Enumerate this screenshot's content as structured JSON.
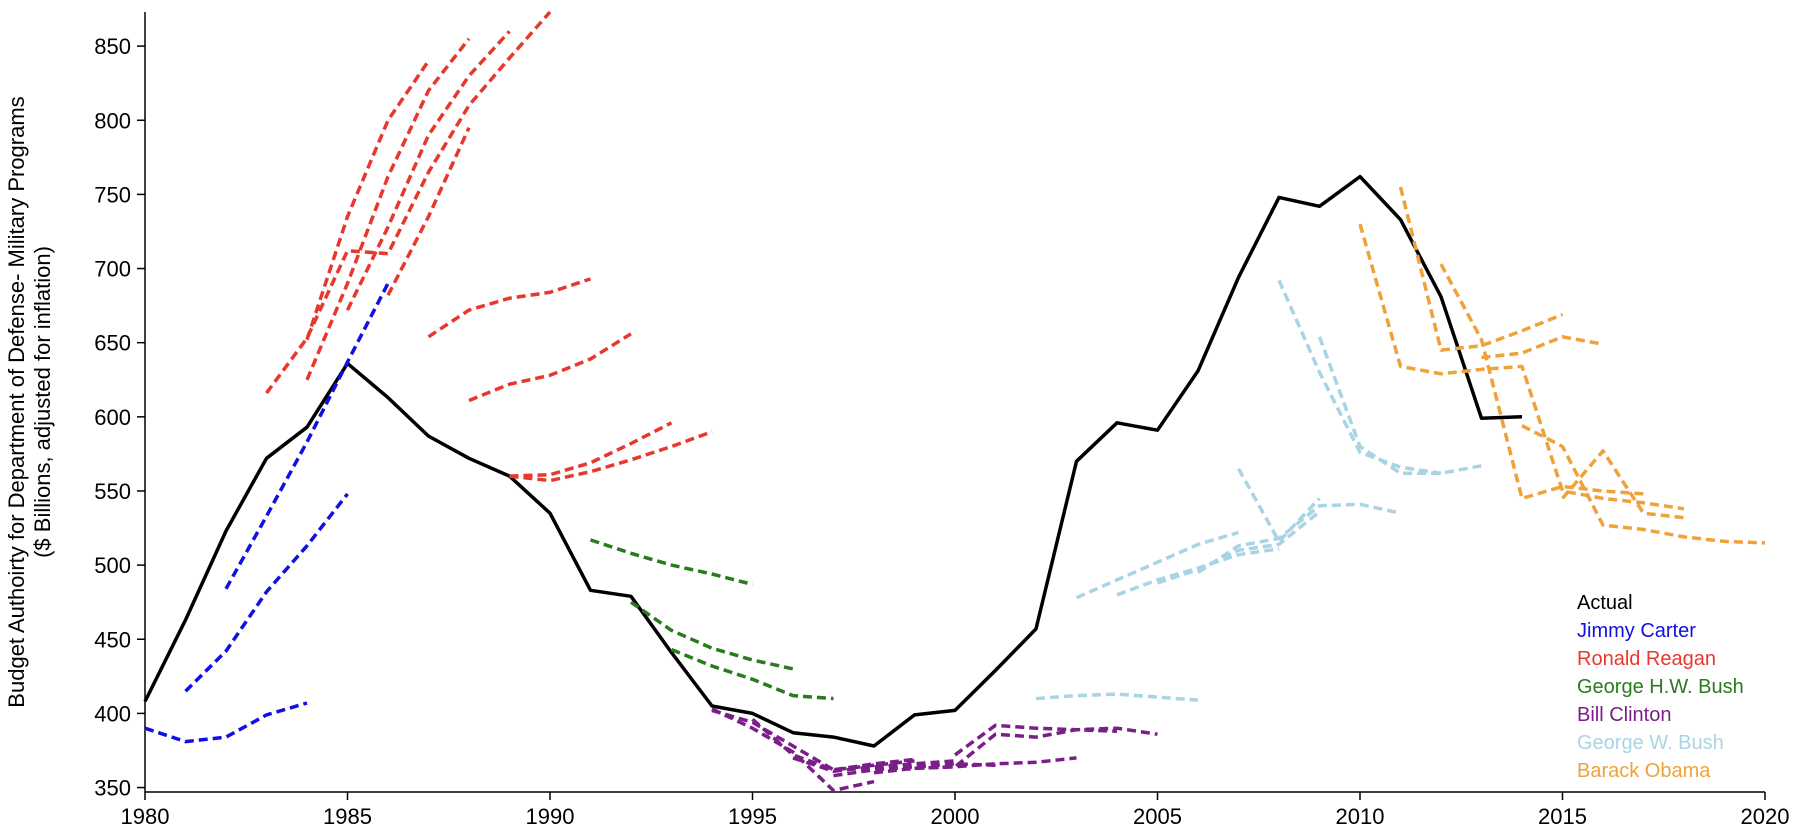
{
  "chart_data": {
    "type": "line",
    "title": "",
    "xlabel": "",
    "ylabel": "Budget Authoirty for Department of Defense- Military Programs",
    "ylabel2": "($ Billions, adjusted for inflation)",
    "xlim": [
      1980,
      2020
    ],
    "ylim": [
      347,
      873
    ],
    "xticks": [
      1980,
      1985,
      1990,
      1995,
      2000,
      2005,
      2010,
      2015,
      2020
    ],
    "yticks": [
      350,
      400,
      450,
      500,
      550,
      600,
      650,
      700,
      750,
      800,
      850
    ],
    "legend_position": "bottom-right",
    "grid": false,
    "series": [
      {
        "name": "Actual",
        "color": "#000000",
        "dashed": false,
        "segments": [
          [
            [
              1980,
              408
            ],
            [
              1981,
              463
            ],
            [
              1982,
              523
            ],
            [
              1983,
              572
            ],
            [
              1984,
              593
            ],
            [
              1985,
              636
            ],
            [
              1986,
              613
            ],
            [
              1987,
              587
            ],
            [
              1988,
              572
            ],
            [
              1989,
              560
            ],
            [
              1990,
              535
            ],
            [
              1991,
              483
            ],
            [
              1992,
              479
            ],
            [
              1993,
              441
            ],
            [
              1994,
              405
            ],
            [
              1995,
              400
            ],
            [
              1996,
              387
            ],
            [
              1997,
              384
            ],
            [
              1998,
              378
            ],
            [
              1999,
              399
            ],
            [
              2000,
              402
            ],
            [
              2001,
              429
            ],
            [
              2002,
              457
            ],
            [
              2003,
              570
            ],
            [
              2004,
              596
            ],
            [
              2005,
              591
            ],
            [
              2006,
              631
            ],
            [
              2007,
              694
            ],
            [
              2008,
              748
            ],
            [
              2009,
              742
            ],
            [
              2010,
              762
            ],
            [
              2011,
              733
            ],
            [
              2012,
              681
            ],
            [
              2013,
              599
            ],
            [
              2014,
              600
            ]
          ]
        ]
      },
      {
        "name": "Jimmy Carter",
        "color": "#1010e0",
        "dashed": true,
        "segments": [
          [
            [
              1980,
              390
            ],
            [
              1981,
              381
            ],
            [
              1982,
              384
            ],
            [
              1983,
              399
            ],
            [
              1984,
              407
            ]
          ],
          [
            [
              1981,
              415
            ],
            [
              1982,
              442
            ],
            [
              1983,
              482
            ],
            [
              1984,
              513
            ],
            [
              1985,
              548
            ]
          ],
          [
            [
              1982,
              484
            ],
            [
              1983,
              533
            ],
            [
              1984,
              583
            ],
            [
              1985,
              637
            ],
            [
              1986,
              690
            ]
          ]
        ]
      },
      {
        "name": "Ronald Reagan",
        "color": "#e8382e",
        "dashed": true,
        "segments": [
          [
            [
              1983,
              616
            ],
            [
              1984,
              653
            ],
            [
              1985,
              712
            ],
            [
              1986,
              710
            ],
            [
              1987,
              765
            ],
            [
              1988,
              810
            ],
            [
              1989,
              842
            ],
            [
              1990,
              873
            ]
          ],
          [
            [
              1984,
              625
            ],
            [
              1985,
              690
            ],
            [
              1986,
              762
            ],
            [
              1987,
              820
            ],
            [
              1988,
              855
            ]
          ],
          [
            [
              1984,
              652
            ],
            [
              1985,
              735
            ],
            [
              1986,
              800
            ],
            [
              1987,
              840
            ]
          ],
          [
            [
              1985,
              672
            ],
            [
              1986,
              728
            ],
            [
              1987,
              790
            ],
            [
              1988,
              830
            ],
            [
              1989,
              860
            ]
          ],
          [
            [
              1986,
              682
            ],
            [
              1987,
              735
            ],
            [
              1988,
              795
            ]
          ],
          [
            [
              1987,
              654
            ],
            [
              1988,
              672
            ],
            [
              1989,
              680
            ],
            [
              1990,
              684
            ],
            [
              1991,
              693
            ]
          ],
          [
            [
              1988,
              611
            ],
            [
              1989,
              622
            ],
            [
              1990,
              628
            ],
            [
              1991,
              639
            ],
            [
              1992,
              656
            ]
          ],
          [
            [
              1989,
              560
            ],
            [
              1990,
              561
            ],
            [
              1991,
              569
            ],
            [
              1992,
              582
            ],
            [
              1993,
              596
            ]
          ],
          [
            [
              1989,
              560
            ],
            [
              1990,
              557
            ],
            [
              1991,
              563
            ],
            [
              1992,
              571
            ],
            [
              1993,
              580
            ],
            [
              1994,
              590
            ]
          ]
        ]
      },
      {
        "name": "George H.W. Bush",
        "color": "#2a7a1e",
        "dashed": true,
        "segments": [
          [
            [
              1991,
              517
            ],
            [
              1992,
              508
            ],
            [
              1993,
              500
            ],
            [
              1994,
              494
            ],
            [
              1995,
              487
            ]
          ],
          [
            [
              1992,
              475
            ],
            [
              1993,
              456
            ],
            [
              1994,
              444
            ],
            [
              1995,
              436
            ],
            [
              1996,
              430
            ]
          ],
          [
            [
              1993,
              443
            ],
            [
              1994,
              432
            ],
            [
              1995,
              423
            ],
            [
              1996,
              412
            ],
            [
              1997,
              410
            ]
          ]
        ]
      },
      {
        "name": "Bill Clinton",
        "color": "#7b1e8a",
        "dashed": true,
        "segments": [
          [
            [
              1994,
              403
            ],
            [
              1995,
              390
            ],
            [
              1996,
              374
            ],
            [
              1997,
              348
            ],
            [
              1998,
              354
            ]
          ],
          [
            [
              1994,
              402
            ],
            [
              1995,
              394
            ],
            [
              1996,
              378
            ],
            [
              1997,
              362
            ],
            [
              1998,
              365
            ],
            [
              1999,
              368
            ]
          ],
          [
            [
              1995,
              396
            ],
            [
              1996,
              372
            ],
            [
              1997,
              362
            ],
            [
              1998,
              366
            ],
            [
              1999,
              369
            ]
          ],
          [
            [
              1996,
              370
            ],
            [
              1997,
              361
            ],
            [
              1998,
              364
            ],
            [
              1999,
              366
            ],
            [
              2000,
              368
            ]
          ],
          [
            [
              1997,
              358
            ],
            [
              1998,
              362
            ],
            [
              1999,
              364
            ],
            [
              2000,
              366
            ],
            [
              2001,
              365
            ]
          ],
          [
            [
              1998,
              360
            ],
            [
              1999,
              363
            ],
            [
              2000,
              364
            ],
            [
              2001,
              366
            ],
            [
              2002,
              367
            ],
            [
              2003,
              370
            ]
          ],
          [
            [
              1999,
              363
            ],
            [
              2000,
              364
            ],
            [
              2001,
              386
            ],
            [
              2002,
              384
            ],
            [
              2003,
              389
            ],
            [
              2004,
              388
            ]
          ],
          [
            [
              2000,
              372
            ],
            [
              2001,
              392
            ],
            [
              2002,
              390
            ],
            [
              2003,
              389
            ],
            [
              2004,
              390
            ],
            [
              2005,
              386
            ]
          ]
        ]
      },
      {
        "name": "George W. Bush",
        "color": "#a8d4e3",
        "dashed": true,
        "segments": [
          [
            [
              2002,
              410
            ],
            [
              2003,
              412
            ],
            [
              2004,
              413
            ],
            [
              2005,
              411
            ],
            [
              2006,
              409
            ]
          ],
          [
            [
              2003,
              478
            ],
            [
              2004,
              490
            ],
            [
              2005,
              502
            ],
            [
              2006,
              514
            ],
            [
              2007,
              522
            ]
          ],
          [
            [
              2004,
              480
            ],
            [
              2005,
              490
            ],
            [
              2006,
              498
            ],
            [
              2007,
              507
            ],
            [
              2008,
              511
            ]
          ],
          [
            [
              2005,
              488
            ],
            [
              2006,
              497
            ],
            [
              2007,
              510
            ],
            [
              2008,
              514
            ],
            [
              2009,
              536
            ]
          ],
          [
            [
              2006,
              495
            ],
            [
              2007,
              513
            ],
            [
              2008,
              518
            ],
            [
              2009,
              540
            ],
            [
              2010,
              541
            ],
            [
              2011,
              535
            ]
          ],
          [
            [
              2007,
              565
            ],
            [
              2008,
              516
            ],
            [
              2009,
              545
            ]
          ],
          [
            [
              2008,
              692
            ],
            [
              2009,
              630
            ],
            [
              2010,
              576
            ],
            [
              2011,
              566
            ],
            [
              2012,
              562
            ]
          ],
          [
            [
              2009,
              654
            ],
            [
              2010,
              580
            ],
            [
              2011,
              562
            ],
            [
              2012,
              562
            ],
            [
              2013,
              567
            ]
          ]
        ]
      },
      {
        "name": "Barack Obama",
        "color": "#f0a23a",
        "dashed": true,
        "segments": [
          [
            [
              2010,
              730
            ],
            [
              2011,
              634
            ],
            [
              2012,
              629
            ],
            [
              2013,
              632
            ],
            [
              2014,
              634
            ],
            [
              2015,
              550
            ],
            [
              2016,
              545
            ],
            [
              2017,
              542
            ],
            [
              2018,
              538
            ]
          ],
          [
            [
              2011,
              755
            ],
            [
              2012,
              645
            ],
            [
              2013,
              648
            ],
            [
              2014,
              658
            ],
            [
              2015,
              669
            ]
          ],
          [
            [
              2012,
              703
            ],
            [
              2013,
              652
            ],
            [
              2014,
              545
            ],
            [
              2015,
              553
            ],
            [
              2016,
              550
            ],
            [
              2017,
              548
            ]
          ],
          [
            [
              2013,
              640
            ],
            [
              2014,
              643
            ],
            [
              2015,
              654
            ],
            [
              2016,
              649
            ]
          ],
          [
            [
              2014,
              594
            ],
            [
              2015,
              580
            ],
            [
              2016,
              527
            ],
            [
              2017,
              524
            ],
            [
              2018,
              519
            ],
            [
              2019,
              516
            ],
            [
              2020,
              515
            ]
          ],
          [
            [
              2015,
              545
            ],
            [
              2016,
              577
            ],
            [
              2017,
              535
            ],
            [
              2018,
              532
            ]
          ]
        ]
      }
    ]
  }
}
